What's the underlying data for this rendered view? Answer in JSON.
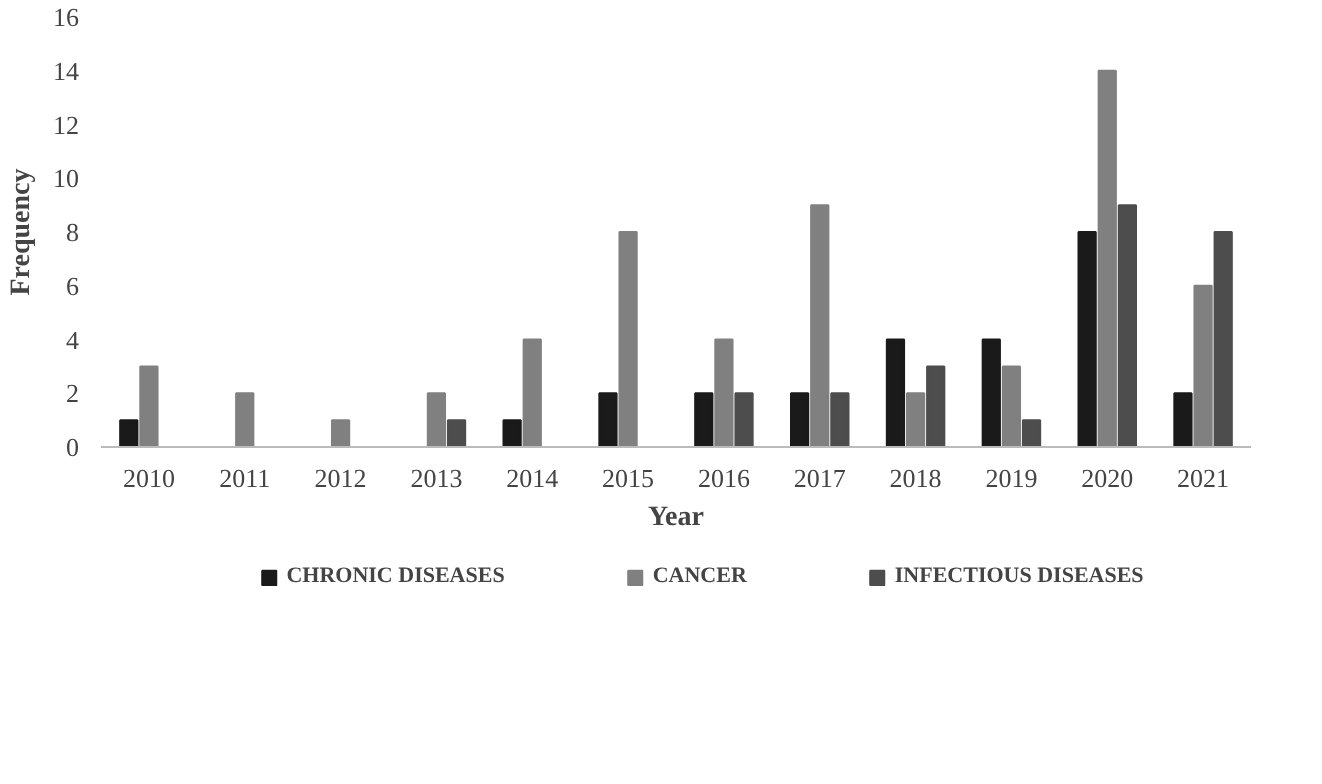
{
  "chart_data": {
    "type": "bar",
    "xlabel": "Year",
    "ylabel": "Frequency",
    "categories": [
      "2010",
      "2011",
      "2012",
      "2013",
      "2014",
      "2015",
      "2016",
      "2017",
      "2018",
      "2019",
      "2020",
      "2021"
    ],
    "series": [
      {
        "name": "CHRONIC DISEASES",
        "color": "#1a1a1a",
        "values": [
          1,
          0,
          0,
          0,
          1,
          2,
          2,
          2,
          4,
          4,
          8,
          2
        ]
      },
      {
        "name": "CANCER",
        "color": "#808080",
        "values": [
          3,
          2,
          1,
          2,
          4,
          8,
          4,
          9,
          2,
          3,
          14,
          6
        ]
      },
      {
        "name": "INFECTIOUS DISEASES",
        "color": "#4d4d4d",
        "values": [
          0,
          0,
          0,
          1,
          0,
          0,
          2,
          2,
          3,
          1,
          9,
          8
        ]
      }
    ],
    "ylim": [
      0,
      16
    ],
    "yticks": [
      0,
      2,
      4,
      6,
      8,
      10,
      12,
      14,
      16
    ],
    "grid": false,
    "legend": "bottom"
  }
}
